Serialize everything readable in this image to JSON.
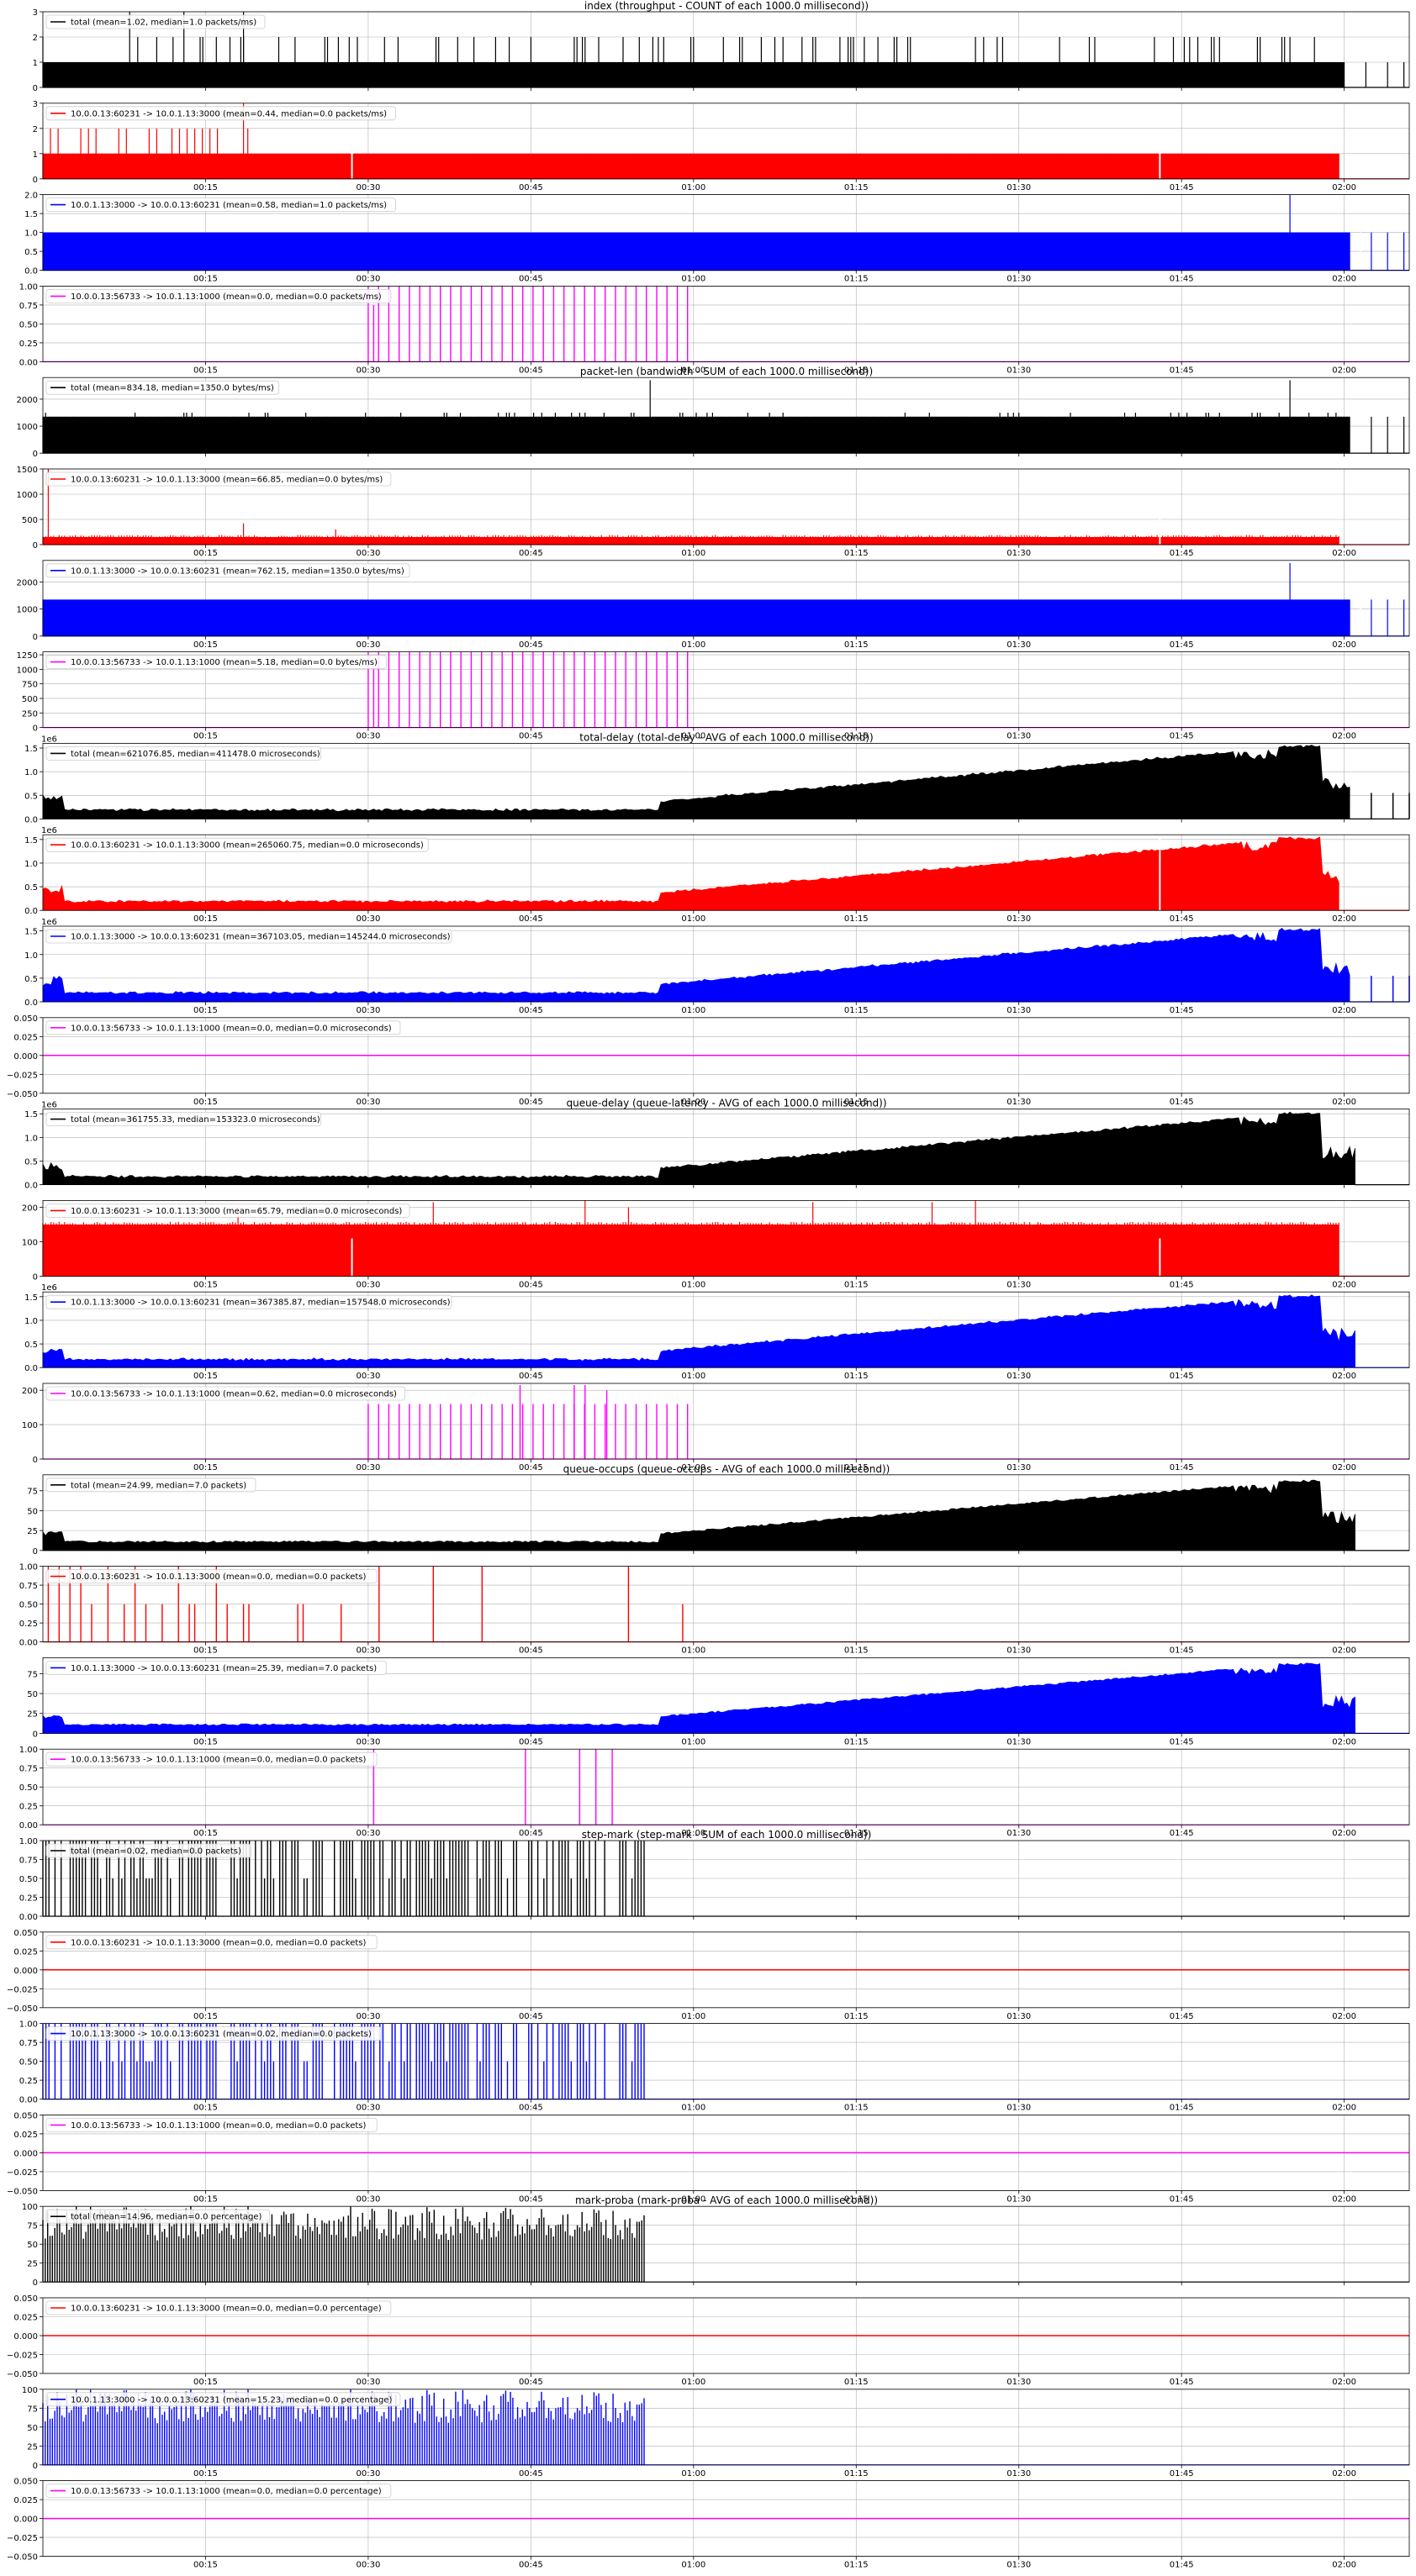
{
  "figure": {
    "groups": [
      {
        "title": "index (throughput - COUNT of each 1000.0 millisecond))",
        "ylabel": "",
        "unit": "packets/ms"
      },
      {
        "title": "packet-len (bandwidth - SUM of each 1000.0 millisecond))",
        "ylabel": "",
        "unit": "bytes/ms"
      },
      {
        "title": "total-delay (total-delay - AVG of each 1000.0 millisecond))",
        "ylabel": "",
        "unit": "microseconds"
      },
      {
        "title": "queue-delay (queue-latency - AVG of each 1000.0 millisecond))",
        "ylabel": "",
        "unit": "microseconds"
      },
      {
        "title": "queue-occups (queue-occups - AVG of each 1000.0 millisecond))",
        "ylabel": "",
        "unit": "packets"
      },
      {
        "title": "step-mark (step-mark - SUM of each 1000.0 millisecond))",
        "ylabel": "",
        "unit": "packets"
      },
      {
        "title": "mark-proba (mark-proba - AVG of each 1000.0 millisecond))",
        "ylabel": "",
        "unit": "percentage"
      }
    ],
    "series_colors": {
      "total": "#000000",
      "flow1": "#ff0000",
      "flow2": "#0000ff",
      "flow3": "#ff00ff"
    },
    "series_labels": {
      "total": "total",
      "flow1": "10.0.0.13:60231 -> 10.0.1.13:3000",
      "flow2": "10.0.1.13:3000 -> 10.0.0.13:60231",
      "flow3": "10.0.0.13:56733 -> 10.0.1.13:1000"
    },
    "x_ticks": [
      "00:15",
      "00:30",
      "00:45",
      "01:00",
      "01:15",
      "01:30",
      "01:45",
      "02:00"
    ],
    "x_range_minutes": [
      0,
      126
    ]
  },
  "chart_data": [
    {
      "type": "bar",
      "group": 0,
      "series": "total",
      "legend": "total (mean=1.02, median=1.0 packets/ms)",
      "ylim": [
        0,
        3
      ],
      "yticks": [
        "0",
        "1",
        "2",
        "3"
      ],
      "offset": "",
      "shape": "count_total",
      "show_xticks": false
    },
    {
      "type": "bar",
      "group": 0,
      "series": "flow1",
      "legend": "10.0.0.13:60231 -> 10.0.1.13:3000 (mean=0.44, median=0.0 packets/ms)",
      "ylim": [
        0,
        3
      ],
      "yticks": [
        "0",
        "1",
        "2",
        "3"
      ],
      "offset": "",
      "shape": "count_flow1",
      "show_xticks": true
    },
    {
      "type": "bar",
      "group": 0,
      "series": "flow2",
      "legend": "10.0.1.13:3000 -> 10.0.0.13:60231 (mean=0.58, median=1.0 packets/ms)",
      "ylim": [
        0,
        2
      ],
      "yticks": [
        "0.0",
        "0.5",
        "1.0",
        "1.5",
        "2.0"
      ],
      "offset": "",
      "shape": "count_flow2",
      "show_xticks": true
    },
    {
      "type": "bar",
      "group": 0,
      "series": "flow3",
      "legend": "10.0.0.13:56733 -> 10.0.1.13:1000 (mean=0.0, median=0.0 packets/ms)",
      "ylim": [
        0,
        1
      ],
      "yticks": [
        "0.00",
        "0.25",
        "0.50",
        "0.75",
        "1.00"
      ],
      "offset": "",
      "shape": "flow3_bursts_full",
      "show_xticks": true
    },
    {
      "type": "bar",
      "group": 1,
      "series": "total",
      "legend": "total (mean=834.18, median=1350.0 bytes/ms)",
      "ylim": [
        0,
        2800
      ],
      "yticks": [
        "0",
        "1000",
        "2000"
      ],
      "yticks_values": [
        0,
        1000,
        2000
      ],
      "offset": "",
      "shape": "bw_total",
      "show_xticks": false
    },
    {
      "type": "bar",
      "group": 1,
      "series": "flow1",
      "legend": "10.0.0.13:60231 -> 10.0.1.13:3000 (mean=66.85, median=0.0 bytes/ms)",
      "ylim": [
        0,
        1500
      ],
      "yticks": [
        "0",
        "500",
        "1000",
        "1500"
      ],
      "offset": "",
      "shape": "bw_flow1",
      "show_xticks": true
    },
    {
      "type": "bar",
      "group": 1,
      "series": "flow2",
      "legend": "10.0.1.13:3000 -> 10.0.0.13:60231 (mean=762.15, median=1350.0 bytes/ms)",
      "ylim": [
        0,
        2800
      ],
      "yticks": [
        "0",
        "1000",
        "2000"
      ],
      "yticks_values": [
        0,
        1000,
        2000
      ],
      "offset": "",
      "shape": "bw_flow2",
      "show_xticks": true
    },
    {
      "type": "bar",
      "group": 1,
      "series": "flow3",
      "legend": "10.0.0.13:56733 -> 10.0.1.13:1000 (mean=5.18, median=0.0 bytes/ms)",
      "ylim": [
        0,
        1300
      ],
      "yticks": [
        "0",
        "250",
        "500",
        "750",
        "1000",
        "1250"
      ],
      "yticks_values": [
        0,
        250,
        500,
        750,
        1000,
        1250
      ],
      "offset": "",
      "shape": "flow3_bursts_bw",
      "show_xticks": true
    },
    {
      "type": "area",
      "group": 2,
      "series": "total",
      "legend": "total (mean=621076.85, median=411478.0 microseconds)",
      "ylim": [
        0,
        1.6
      ],
      "yticks": [
        "0.0",
        "0.5",
        "1.0",
        "1.5"
      ],
      "yticks_values": [
        0,
        0.5,
        1.0,
        1.5
      ],
      "offset": "1e6",
      "shape": "delay_total",
      "show_xticks": false
    },
    {
      "type": "area",
      "group": 2,
      "series": "flow1",
      "legend": "10.0.0.13:60231 -> 10.0.1.13:3000 (mean=265060.75, median=0.0 microseconds)",
      "ylim": [
        0,
        1.6
      ],
      "yticks": [
        "0.0",
        "0.5",
        "1.0",
        "1.5"
      ],
      "yticks_values": [
        0,
        0.5,
        1.0,
        1.5
      ],
      "offset": "1e6",
      "shape": "delay_flow1",
      "show_xticks": true
    },
    {
      "type": "area",
      "group": 2,
      "series": "flow2",
      "legend": "10.0.1.13:3000 -> 10.0.0.13:60231 (mean=367103.05, median=145244.0 microseconds)",
      "ylim": [
        0,
        1.6
      ],
      "yticks": [
        "0.0",
        "0.5",
        "1.0",
        "1.5"
      ],
      "yticks_values": [
        0,
        0.5,
        1.0,
        1.5
      ],
      "offset": "1e6",
      "shape": "delay_flow2",
      "show_xticks": true
    },
    {
      "type": "line",
      "group": 2,
      "series": "flow3",
      "legend": "10.0.0.13:56733 -> 10.0.1.13:1000 (mean=0.0, median=0.0 microseconds)",
      "ylim": [
        -0.05,
        0.05
      ],
      "yticks": [
        "−0.050",
        "−0.025",
        "0.000",
        "0.025",
        "0.050"
      ],
      "yticks_values": [
        -0.05,
        -0.025,
        0,
        0.025,
        0.05
      ],
      "offset": "",
      "shape": "zero",
      "show_xticks": true
    },
    {
      "type": "area",
      "group": 3,
      "series": "total",
      "legend": "total (mean=361755.33, median=153323.0 microseconds)",
      "ylim": [
        0,
        1.6
      ],
      "yticks": [
        "0.0",
        "0.5",
        "1.0",
        "1.5"
      ],
      "yticks_values": [
        0,
        0.5,
        1.0,
        1.5
      ],
      "offset": "1e6",
      "shape": "qdelay_total",
      "show_xticks": false
    },
    {
      "type": "bar",
      "group": 3,
      "series": "flow1",
      "legend": "10.0.0.13:60231 -> 10.0.1.13:3000 (mean=65.79, median=0.0 microseconds)",
      "ylim": [
        0,
        220
      ],
      "yticks": [
        "0",
        "100",
        "200"
      ],
      "yticks_values": [
        0,
        100,
        200
      ],
      "offset": "",
      "shape": "qdelay_flow1",
      "show_xticks": true
    },
    {
      "type": "area",
      "group": 3,
      "series": "flow2",
      "legend": "10.0.1.13:3000 -> 10.0.0.13:60231 (mean=367385.87, median=157548.0 microseconds)",
      "ylim": [
        0,
        1.6
      ],
      "yticks": [
        "0.0",
        "0.5",
        "1.0",
        "1.5"
      ],
      "yticks_values": [
        0,
        0.5,
        1.0,
        1.5
      ],
      "offset": "1e6",
      "shape": "qdelay_flow2",
      "show_xticks": true
    },
    {
      "type": "bar",
      "group": 3,
      "series": "flow3",
      "legend": "10.0.0.13:56733 -> 10.0.1.13:1000 (mean=0.62, median=0.0 microseconds)",
      "ylim": [
        0,
        220
      ],
      "yticks": [
        "0",
        "100",
        "200"
      ],
      "yticks_values": [
        0,
        100,
        200
      ],
      "offset": "",
      "shape": "qdelay_flow3",
      "show_xticks": true
    },
    {
      "type": "area",
      "group": 4,
      "series": "total",
      "legend": "total (mean=24.99, median=7.0 packets)",
      "ylim": [
        0,
        95
      ],
      "yticks": [
        "0",
        "25",
        "50",
        "75"
      ],
      "yticks_values": [
        0,
        25,
        50,
        75
      ],
      "offset": "",
      "shape": "occ_total",
      "show_xticks": false
    },
    {
      "type": "bar",
      "group": 4,
      "series": "flow1",
      "legend": "10.0.0.13:60231 -> 10.0.1.13:3000 (mean=0.0, median=0.0 packets)",
      "ylim": [
        0,
        1
      ],
      "yticks": [
        "0.00",
        "0.25",
        "0.50",
        "0.75",
        "1.00"
      ],
      "yticks_values": [
        0,
        0.25,
        0.5,
        0.75,
        1.0
      ],
      "offset": "",
      "shape": "occ_flow1",
      "show_xticks": true
    },
    {
      "type": "area",
      "group": 4,
      "series": "flow2",
      "legend": "10.0.1.13:3000 -> 10.0.0.13:60231 (mean=25.39, median=7.0 packets)",
      "ylim": [
        0,
        95
      ],
      "yticks": [
        "0",
        "25",
        "50",
        "75"
      ],
      "yticks_values": [
        0,
        25,
        50,
        75
      ],
      "offset": "",
      "shape": "occ_flow2",
      "show_xticks": true
    },
    {
      "type": "bar",
      "group": 4,
      "series": "flow3",
      "legend": "10.0.0.13:56733 -> 10.0.1.13:1000 (mean=0.0, median=0.0 packets)",
      "ylim": [
        0,
        1
      ],
      "yticks": [
        "0.00",
        "0.25",
        "0.50",
        "0.75",
        "1.00"
      ],
      "yticks_values": [
        0,
        0.25,
        0.5,
        0.75,
        1.0
      ],
      "offset": "",
      "shape": "occ_flow3",
      "show_xticks": true
    },
    {
      "type": "bar",
      "group": 5,
      "series": "total",
      "legend": "total (mean=0.02, median=0.0 packets)",
      "ylim": [
        0,
        1
      ],
      "yticks": [
        "0.00",
        "0.25",
        "0.50",
        "0.75",
        "1.00"
      ],
      "yticks_values": [
        0,
        0.25,
        0.5,
        0.75,
        1.0
      ],
      "offset": "",
      "shape": "mark_dense",
      "show_xticks": false
    },
    {
      "type": "line",
      "group": 5,
      "series": "flow1",
      "legend": "10.0.0.13:60231 -> 10.0.1.13:3000 (mean=0.0, median=0.0 packets)",
      "ylim": [
        -0.05,
        0.05
      ],
      "yticks": [
        "−0.050",
        "−0.025",
        "0.000",
        "0.025",
        "0.050"
      ],
      "yticks_values": [
        -0.05,
        -0.025,
        0,
        0.025,
        0.05
      ],
      "offset": "",
      "shape": "zero",
      "show_xticks": true
    },
    {
      "type": "bar",
      "group": 5,
      "series": "flow2",
      "legend": "10.0.1.13:3000 -> 10.0.0.13:60231 (mean=0.02, median=0.0 packets)",
      "ylim": [
        0,
        1
      ],
      "yticks": [
        "0.00",
        "0.25",
        "0.50",
        "0.75",
        "1.00"
      ],
      "yticks_values": [
        0,
        0.25,
        0.5,
        0.75,
        1.0
      ],
      "offset": "",
      "shape": "mark_dense",
      "show_xticks": true
    },
    {
      "type": "line",
      "group": 5,
      "series": "flow3",
      "legend": "10.0.0.13:56733 -> 10.0.1.13:1000 (mean=0.0, median=0.0 packets)",
      "ylim": [
        -0.05,
        0.05
      ],
      "yticks": [
        "−0.050",
        "−0.025",
        "0.000",
        "0.025",
        "0.050"
      ],
      "yticks_values": [
        -0.05,
        -0.025,
        0,
        0.025,
        0.05
      ],
      "offset": "",
      "shape": "zero",
      "show_xticks": true
    },
    {
      "type": "bar",
      "group": 6,
      "series": "total",
      "legend": "total (mean=14.96, median=0.0 percentage)",
      "ylim": [
        0,
        100
      ],
      "yticks": [
        "0",
        "25",
        "50",
        "75",
        "100"
      ],
      "yticks_values": [
        0,
        25,
        50,
        75,
        100
      ],
      "offset": "",
      "shape": "proba_dense",
      "show_xticks": false
    },
    {
      "type": "line",
      "group": 6,
      "series": "flow1",
      "legend": "10.0.0.13:60231 -> 10.0.1.13:3000 (mean=0.0, median=0.0 percentage)",
      "ylim": [
        -0.05,
        0.05
      ],
      "yticks": [
        "−0.050",
        "−0.025",
        "0.000",
        "0.025",
        "0.050"
      ],
      "yticks_values": [
        -0.05,
        -0.025,
        0,
        0.025,
        0.05
      ],
      "offset": "",
      "shape": "zero",
      "show_xticks": true
    },
    {
      "type": "bar",
      "group": 6,
      "series": "flow2",
      "legend": "10.0.1.13:3000 -> 10.0.0.13:60231 (mean=15.23, median=0.0 percentage)",
      "ylim": [
        0,
        100
      ],
      "yticks": [
        "0",
        "25",
        "50",
        "75",
        "100"
      ],
      "yticks_values": [
        0,
        25,
        50,
        75,
        100
      ],
      "offset": "",
      "shape": "proba_dense",
      "show_xticks": true
    },
    {
      "type": "line",
      "group": 6,
      "series": "flow3",
      "legend": "10.0.0.13:56733 -> 10.0.1.13:1000 (mean=0.0, median=0.0 percentage)",
      "ylim": [
        -0.05,
        0.05
      ],
      "yticks": [
        "−0.050",
        "−0.025",
        "0.000",
        "0.025",
        "0.050"
      ],
      "yticks_values": [
        -0.05,
        -0.025,
        0,
        0.025,
        0.05
      ],
      "offset": "",
      "shape": "zero",
      "show_xticks": true
    }
  ]
}
